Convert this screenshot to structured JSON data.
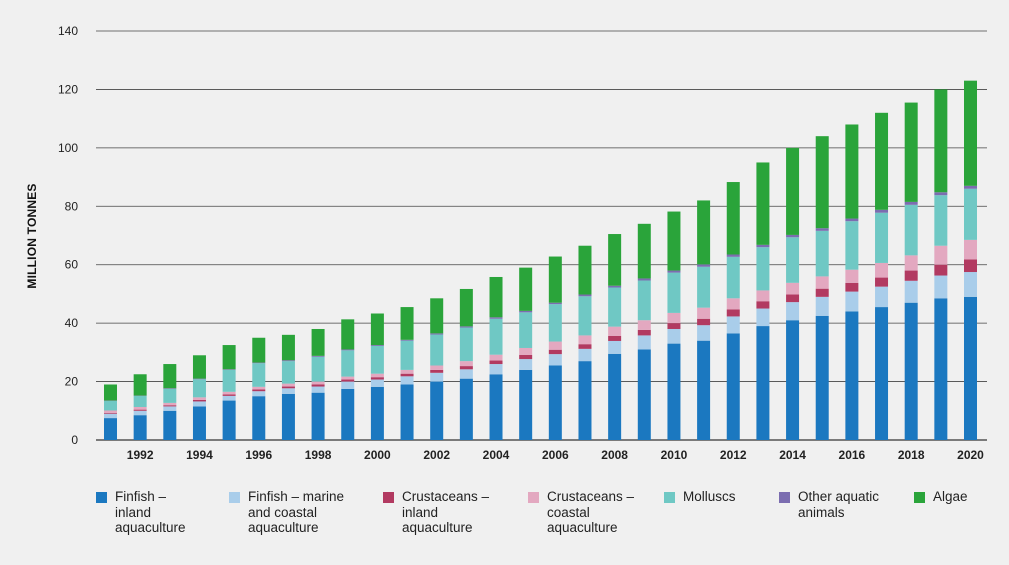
{
  "chart_data": {
    "type": "bar",
    "stacked": true,
    "ylabel": "MILLION TONNES",
    "xlabel": "",
    "ylim": [
      0,
      140
    ],
    "yticks": [
      0,
      20,
      40,
      60,
      80,
      100,
      120,
      140
    ],
    "grid": true,
    "legend_position": "bottom",
    "categories": [
      1991,
      1992,
      1993,
      1994,
      1995,
      1996,
      1997,
      1998,
      1999,
      2000,
      2001,
      2002,
      2003,
      2004,
      2005,
      2006,
      2007,
      2008,
      2009,
      2010,
      2011,
      2012,
      2013,
      2014,
      2015,
      2016,
      2017,
      2018,
      2019,
      2020
    ],
    "xtick_labels": [
      "",
      "1992",
      "",
      "1994",
      "",
      "1996",
      "",
      "1998",
      "",
      "2000",
      "",
      "2002",
      "",
      "2004",
      "",
      "2006",
      "",
      "2008",
      "",
      "2010",
      "",
      "2012",
      "",
      "2014",
      "",
      "2016",
      "",
      "2018",
      "",
      "2020"
    ],
    "series": [
      {
        "name": "Finfish – inland aquaculture",
        "color": "#1b78c0",
        "values": [
          7.5,
          8.5,
          10.0,
          11.5,
          13.5,
          15.0,
          15.8,
          16.2,
          17.5,
          18.2,
          19.0,
          20.0,
          21.0,
          22.5,
          24.0,
          25.5,
          27.0,
          29.5,
          31.0,
          33.0,
          34.0,
          36.5,
          39.0,
          41.0,
          42.5,
          44.0,
          45.5,
          47.0,
          48.5,
          49.0
        ]
      },
      {
        "name": "Finfish – marine and coastal aquaculture",
        "color": "#a9cdea",
        "values": [
          1.5,
          1.5,
          1.5,
          1.7,
          1.6,
          1.7,
          1.9,
          2.1,
          2.5,
          2.5,
          2.8,
          3.0,
          3.2,
          3.5,
          3.7,
          3.9,
          4.2,
          4.4,
          4.8,
          5.0,
          5.3,
          5.8,
          6.0,
          6.2,
          6.5,
          6.8,
          7.0,
          7.5,
          7.8,
          8.5
        ]
      },
      {
        "name": "Crustaceans – inland aquaculture",
        "color": "#b23a61",
        "values": [
          0.3,
          0.4,
          0.4,
          0.5,
          0.5,
          0.6,
          0.6,
          0.7,
          0.7,
          0.8,
          0.9,
          1.0,
          1.1,
          1.2,
          1.4,
          1.5,
          1.6,
          1.7,
          1.9,
          2.0,
          2.2,
          2.4,
          2.5,
          2.6,
          2.8,
          3.0,
          3.1,
          3.5,
          3.7,
          4.3
        ]
      },
      {
        "name": "Crustaceans – coastal aquaculture",
        "color": "#e3a8c0",
        "values": [
          0.8,
          0.9,
          0.8,
          0.9,
          0.9,
          0.9,
          1.0,
          1.0,
          1.0,
          1.2,
          1.3,
          1.5,
          1.7,
          2.0,
          2.4,
          2.8,
          3.0,
          3.2,
          3.3,
          3.5,
          3.8,
          3.8,
          3.7,
          4.0,
          4.2,
          4.5,
          5.0,
          5.2,
          6.5,
          6.7
        ]
      },
      {
        "name": "Molluscs",
        "color": "#6fc8c4",
        "values": [
          3.3,
          3.8,
          4.8,
          6.2,
          7.5,
          8.1,
          7.7,
          8.5,
          9.0,
          9.5,
          10.0,
          10.6,
          11.5,
          12.3,
          12.2,
          12.8,
          13.4,
          13.4,
          13.6,
          13.8,
          14.0,
          14.2,
          14.8,
          15.6,
          15.6,
          16.6,
          17.2,
          17.3,
          17.3,
          17.5
        ]
      },
      {
        "name": "Other aquatic animals",
        "color": "#7b6db0",
        "values": [
          0.1,
          0.1,
          0.2,
          0.2,
          0.2,
          0.2,
          0.3,
          0.3,
          0.3,
          0.3,
          0.3,
          0.4,
          0.4,
          0.5,
          0.5,
          0.5,
          0.6,
          0.6,
          0.7,
          0.7,
          0.8,
          0.8,
          0.8,
          0.8,
          0.9,
          0.9,
          1.0,
          1.0,
          1.0,
          1.0
        ]
      },
      {
        "name": "Algae",
        "color": "#2aa43a",
        "values": [
          5.5,
          7.3,
          8.3,
          8.0,
          8.3,
          8.5,
          8.7,
          9.2,
          10.3,
          10.8,
          11.2,
          12.0,
          12.8,
          13.8,
          14.8,
          15.8,
          16.7,
          17.7,
          18.7,
          20.2,
          21.9,
          24.8,
          28.2,
          29.8,
          31.5,
          32.2,
          33.2,
          34.0,
          35.2,
          36.0
        ]
      }
    ]
  },
  "legend": {
    "items": [
      {
        "label": "Finfish –\ninland\naquaculture",
        "color": "#1b78c0"
      },
      {
        "label": "Finfish – marine\nand coastal\naquaculture",
        "color": "#a9cdea"
      },
      {
        "label": "Crustaceans –\ninland\naquaculture",
        "color": "#b23a61"
      },
      {
        "label": "Crustaceans –\ncoastal\naquaculture",
        "color": "#e3a8c0"
      },
      {
        "label": "Molluscs",
        "color": "#6fc8c4"
      },
      {
        "label": "Other aquatic\nanimals",
        "color": "#7b6db0"
      },
      {
        "label": "Algae",
        "color": "#2aa43a"
      }
    ]
  }
}
